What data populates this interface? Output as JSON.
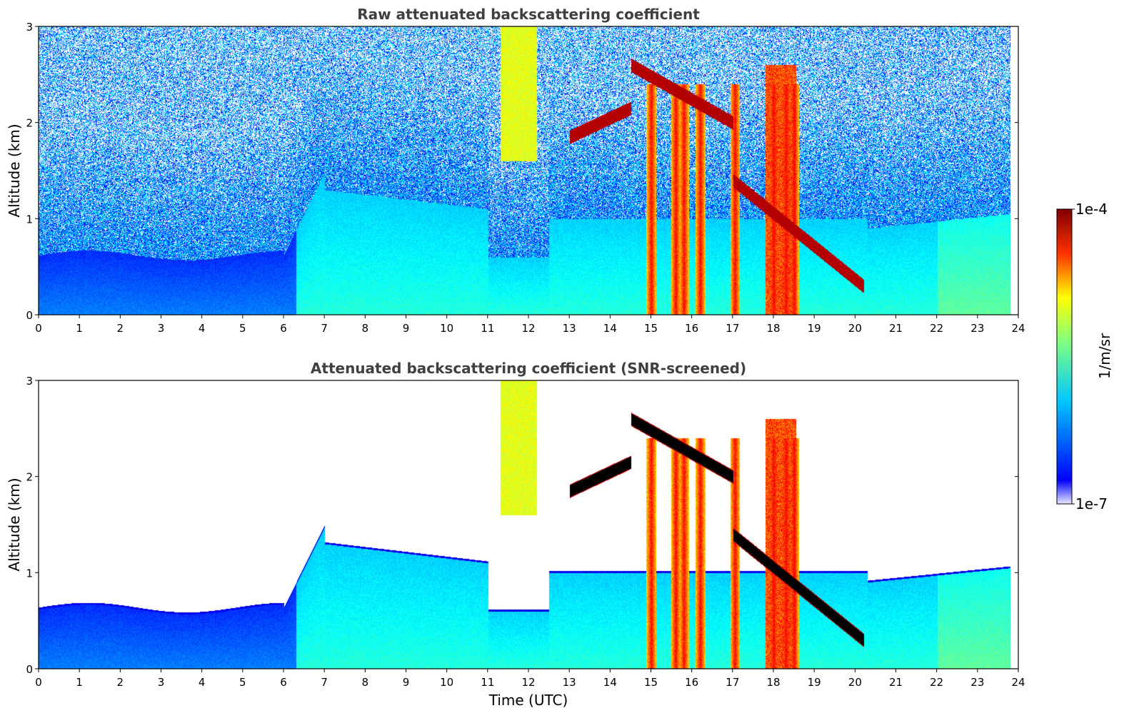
{
  "chart_data": [
    {
      "type": "heatmap",
      "title": "Raw attenuated backscattering coefficient",
      "xlabel": "",
      "ylabel": "Altitude (km)",
      "xlim": [
        0,
        24
      ],
      "ylim": [
        0,
        3
      ],
      "xticks": [
        "0",
        "1",
        "2",
        "3",
        "4",
        "5",
        "6",
        "7",
        "8",
        "9",
        "10",
        "11",
        "12",
        "13",
        "14",
        "15",
        "16",
        "17",
        "18",
        "19",
        "20",
        "21",
        "22",
        "23",
        "24"
      ],
      "yticks": [
        "0",
        "1",
        "2",
        "3"
      ],
      "screened": false
    },
    {
      "type": "heatmap",
      "title": "Attenuated backscattering coefficient (SNR-screened)",
      "xlabel": "Time (UTC)",
      "ylabel": "Altitude (km)",
      "xlim": [
        0,
        24
      ],
      "ylim": [
        0,
        3
      ],
      "xticks": [
        "0",
        "1",
        "2",
        "3",
        "4",
        "5",
        "6",
        "7",
        "8",
        "9",
        "10",
        "11",
        "12",
        "13",
        "14",
        "15",
        "16",
        "17",
        "18",
        "19",
        "20",
        "21",
        "22",
        "23",
        "24"
      ],
      "yticks": [
        "0",
        "1",
        "2",
        "3"
      ],
      "screened": true
    }
  ],
  "colorbar": {
    "max_label": "1e-4",
    "min_label": "1e-7",
    "unit_label": "1/m/sr",
    "colormap": "jet",
    "scale": "log"
  }
}
